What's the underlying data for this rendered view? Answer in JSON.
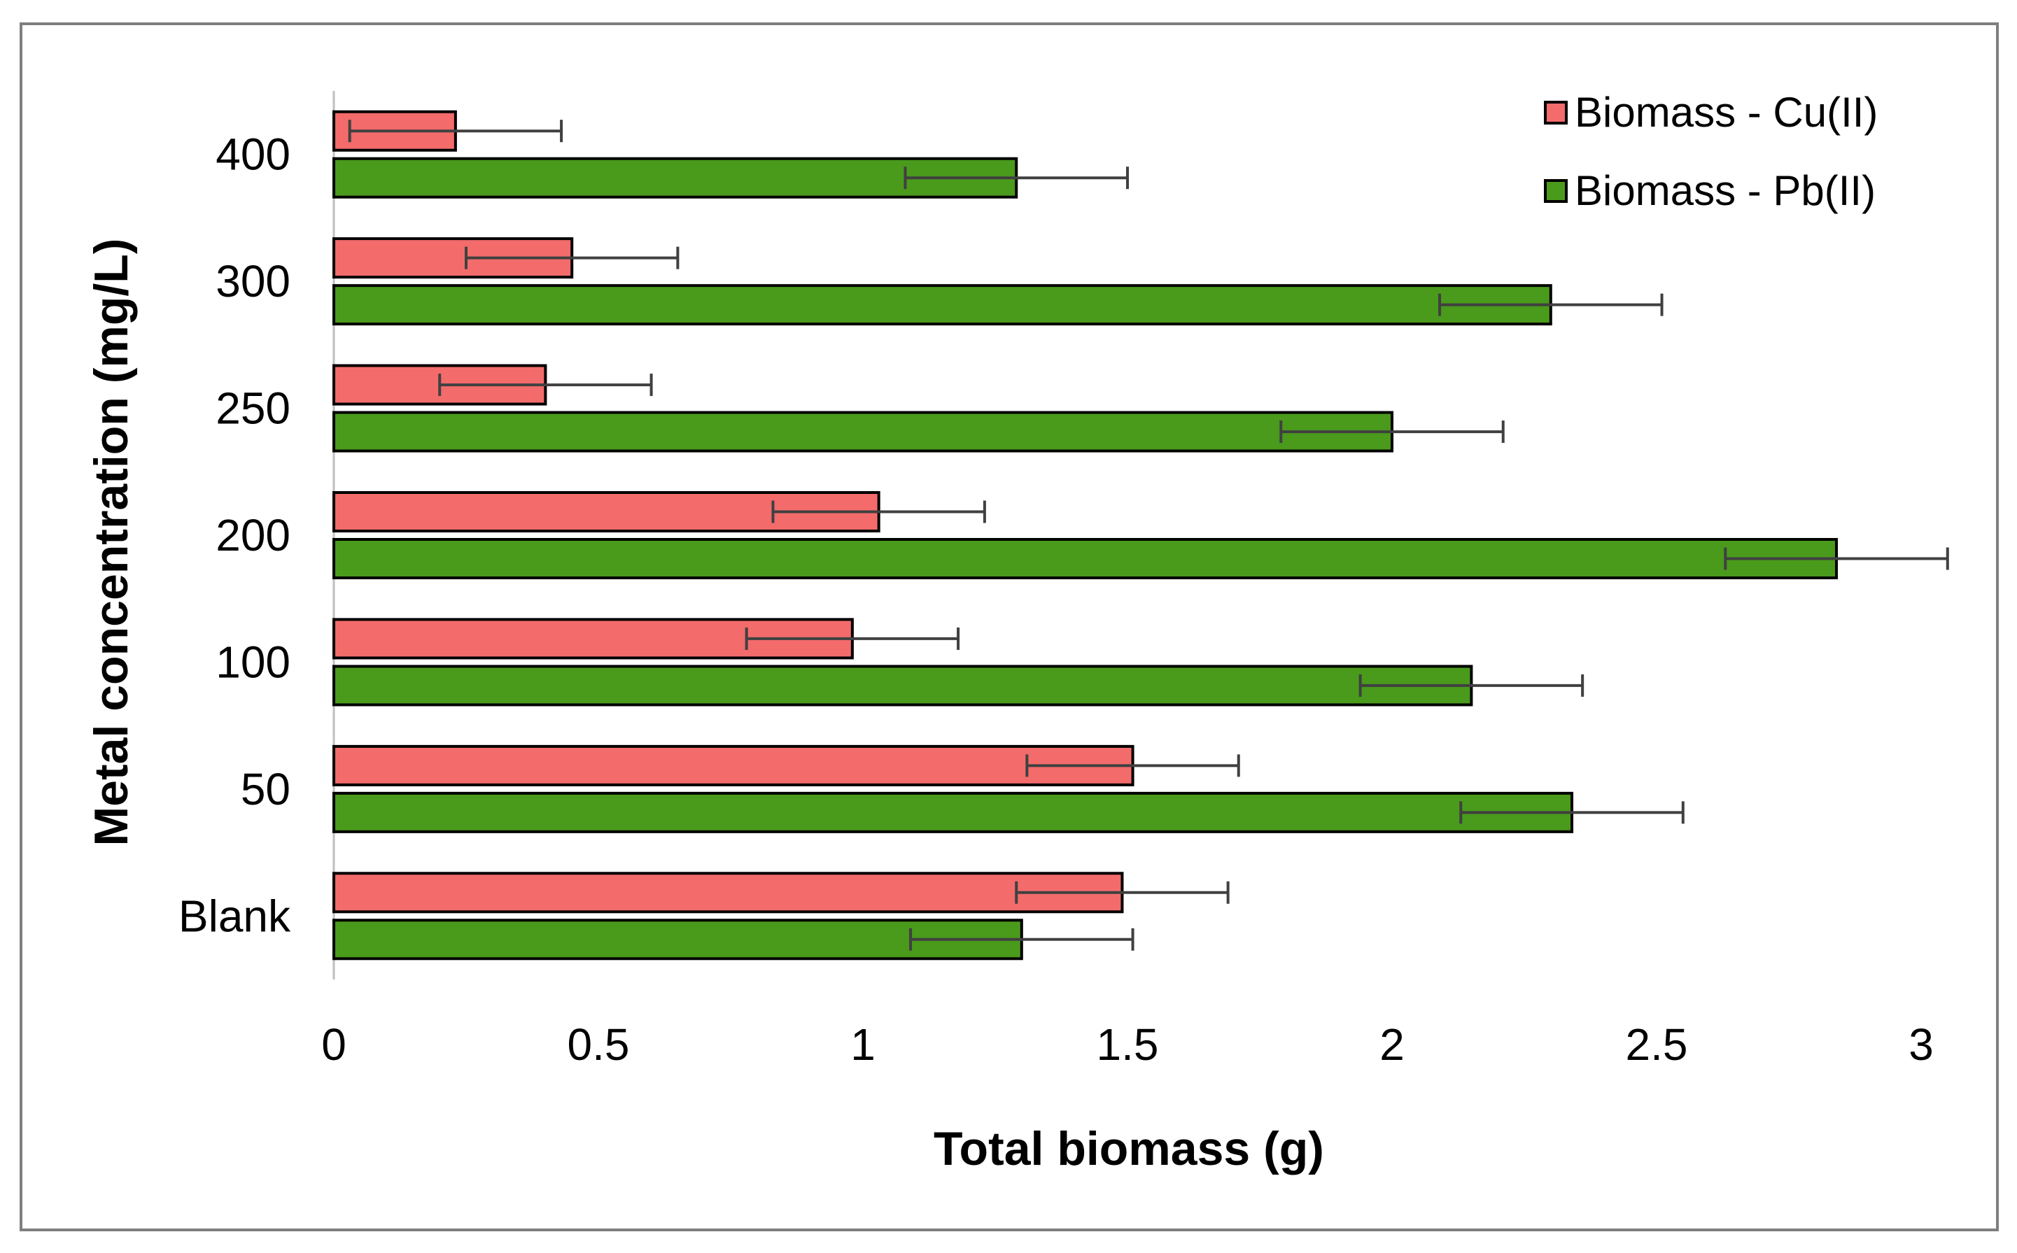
{
  "chart_data": {
    "type": "bar",
    "orientation": "horizontal",
    "title": "",
    "xlabel": "Total biomass (g)",
    "ylabel": "Metal concentration (mg/L)",
    "xlim": [
      0,
      3
    ],
    "xticks": [
      "0",
      "0.5",
      "1",
      "1.5",
      "2",
      "2.5",
      "3"
    ],
    "categories": [
      "Blank",
      "50",
      "100",
      "200",
      "250",
      "300",
      "400"
    ],
    "series": [
      {
        "name": "Biomass - Cu(II)",
        "color": "#f36b6b",
        "values": [
          1.49,
          1.51,
          0.98,
          1.03,
          0.4,
          0.45,
          0.23
        ],
        "errors": [
          0.2,
          0.2,
          0.2,
          0.2,
          0.2,
          0.2,
          0.2
        ]
      },
      {
        "name": "Biomass - Pb(II)",
        "color": "#4a9a1c",
        "values": [
          1.3,
          2.34,
          2.15,
          2.84,
          2.0,
          2.3,
          1.29
        ],
        "errors": [
          0.21,
          0.21,
          0.21,
          0.21,
          0.21,
          0.21,
          0.21
        ]
      }
    ],
    "legend_position": "top-right",
    "grid": false
  }
}
